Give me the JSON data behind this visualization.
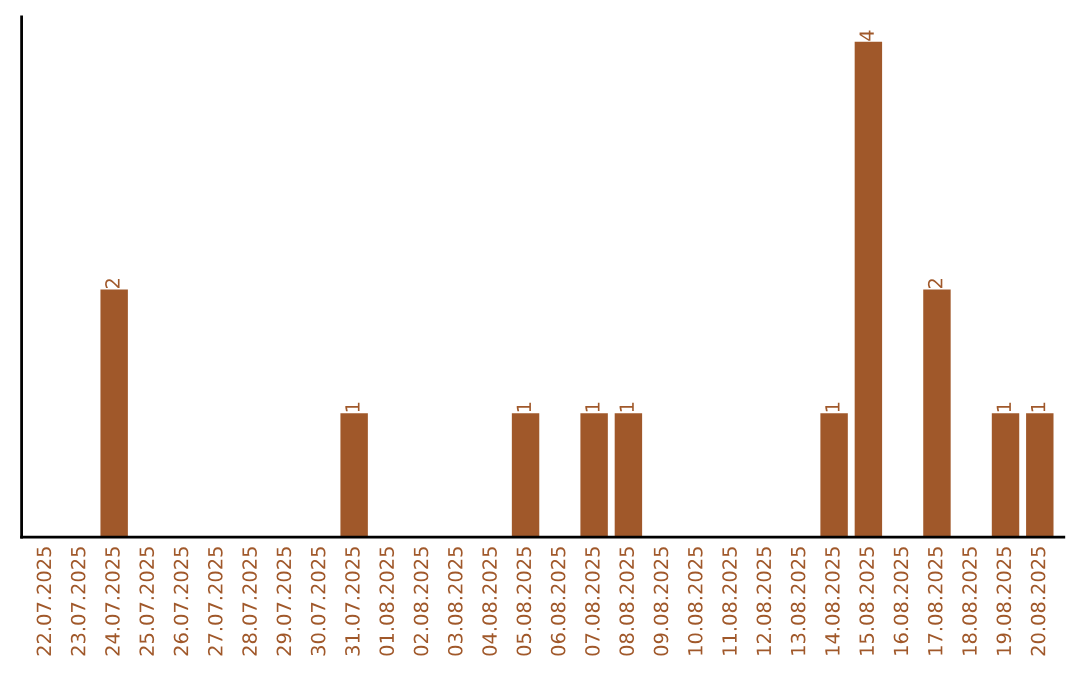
{
  "chart_data": {
    "type": "bar",
    "categories": [
      "22.07.2025",
      "23.07.2025",
      "24.07.2025",
      "25.07.2025",
      "26.07.2025",
      "27.07.2025",
      "28.07.2025",
      "29.07.2025",
      "30.07.2025",
      "31.07.2025",
      "01.08.2025",
      "02.08.2025",
      "03.08.2025",
      "04.08.2025",
      "05.08.2025",
      "06.08.2025",
      "07.08.2025",
      "08.08.2025",
      "09.08.2025",
      "10.08.2025",
      "11.08.2025",
      "12.08.2025",
      "13.08.2025",
      "14.08.2025",
      "15.08.2025",
      "16.08.2025",
      "17.08.2025",
      "18.08.2025",
      "19.08.2025",
      "20.08.2025"
    ],
    "values": [
      0,
      0,
      2,
      0,
      0,
      0,
      0,
      0,
      0,
      1,
      0,
      0,
      0,
      0,
      1,
      0,
      1,
      1,
      0,
      0,
      0,
      0,
      0,
      1,
      4,
      0,
      2,
      0,
      1,
      1
    ],
    "value_labels": [
      null,
      null,
      "2",
      null,
      null,
      null,
      null,
      null,
      null,
      "1",
      null,
      null,
      null,
      null,
      "1",
      null,
      "1",
      "1",
      null,
      null,
      null,
      null,
      null,
      "1",
      "4",
      null,
      "2",
      null,
      "1",
      "1"
    ],
    "color": "#a0582a",
    "tick_labels": "x",
    "grid": false
  }
}
